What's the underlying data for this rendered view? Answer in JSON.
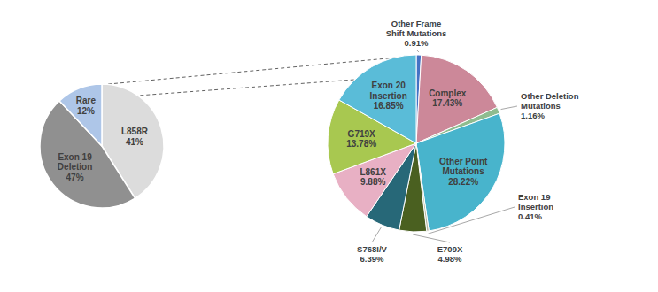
{
  "chart_data": [
    {
      "type": "pie",
      "categories": [
        "L858R",
        "Exon 19\nDeletion",
        "Rare"
      ],
      "values": [
        41,
        47,
        12
      ],
      "value_labels": [
        "41%",
        "47%",
        "12%"
      ],
      "colors": [
        "#dcdcdc",
        "#909090",
        "#aec6e8"
      ],
      "data_labels": true
    },
    {
      "type": "pie",
      "categories": [
        "Other Frame\nShift Mutations",
        "Complex",
        "Other Deletion\nMutations",
        "Other Point\nMutations",
        "Exon 19\nInsertion",
        "E709X",
        "S768I/V",
        "L861X",
        "G719X",
        "Exon 20\nInsertion"
      ],
      "values": [
        0.91,
        17.43,
        1.16,
        28.22,
        0.41,
        4.98,
        6.39,
        9.88,
        13.78,
        16.85
      ],
      "value_labels": [
        "0.91%",
        "17.43%",
        "1.16%",
        "28.22%",
        "0.41%",
        "4.98%",
        "6.39%",
        "9.88%",
        "13.78%",
        "16.85%"
      ],
      "colors": [
        "#4472c4",
        "#cc8899",
        "#8fbc8f",
        "#48b4cc",
        "#b8b8a0",
        "#4a6020",
        "#276878",
        "#e8b0c4",
        "#a8c850",
        "#5abcd8"
      ],
      "data_labels": true
    }
  ]
}
